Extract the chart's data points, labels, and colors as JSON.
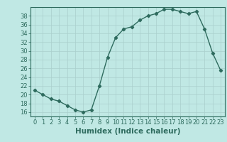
{
  "x": [
    0,
    1,
    2,
    3,
    4,
    5,
    6,
    7,
    8,
    9,
    10,
    11,
    12,
    13,
    14,
    15,
    16,
    17,
    18,
    19,
    20,
    21,
    22,
    23
  ],
  "y": [
    21,
    20,
    19,
    18.5,
    17.5,
    16.5,
    16,
    16.5,
    22,
    28.5,
    33,
    35,
    35.5,
    37,
    38,
    38.5,
    39.5,
    39.5,
    39,
    38.5,
    39,
    35,
    29.5,
    25.5
  ],
  "line_color": "#2e6b5e",
  "bg_color": "#c0e8e4",
  "grid_color": "#aacfcc",
  "xlabel": "Humidex (Indice chaleur)",
  "ylim": [
    15,
    40
  ],
  "xlim": [
    -0.5,
    23.5
  ],
  "yticks": [
    16,
    18,
    20,
    22,
    24,
    26,
    28,
    30,
    32,
    34,
    36,
    38
  ],
  "xticks": [
    0,
    1,
    2,
    3,
    4,
    5,
    6,
    7,
    8,
    9,
    10,
    11,
    12,
    13,
    14,
    15,
    16,
    17,
    18,
    19,
    20,
    21,
    22,
    23
  ],
  "marker": "D",
  "marker_size": 2.2,
  "line_width": 1.0,
  "xlabel_fontsize": 7.5,
  "tick_fontsize": 6.0
}
